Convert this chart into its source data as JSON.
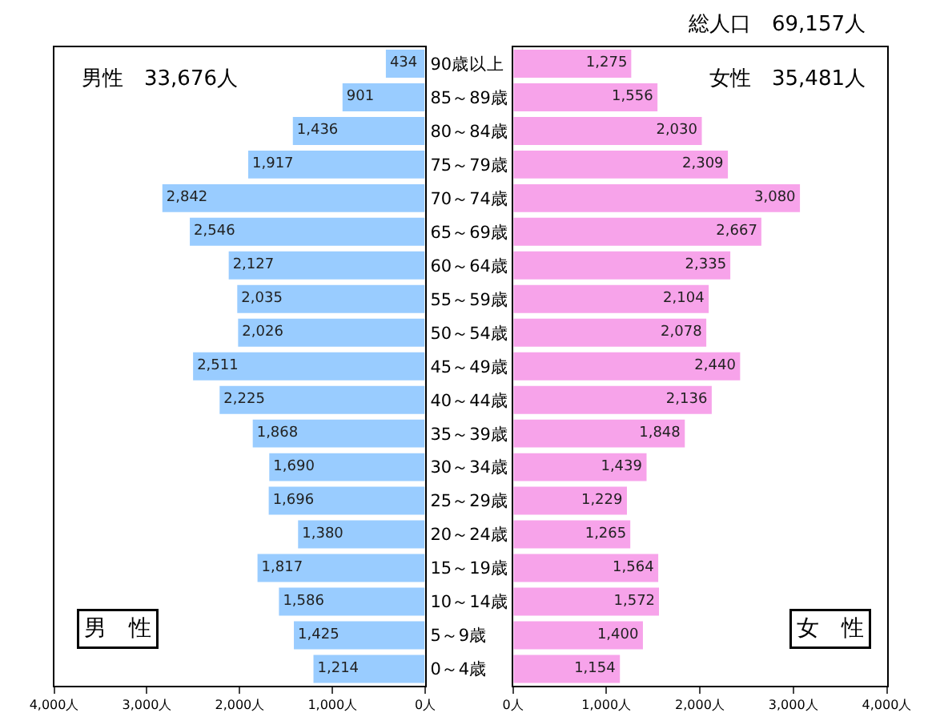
{
  "chart_data": [
    {
      "type": "bar",
      "orientation": "horizontal",
      "color": "#99ccff",
      "categories": [
        "90歳以上",
        "85～89歳",
        "80～84歳",
        "75～79歳",
        "70～74歳",
        "65～69歳",
        "60～64歳",
        "55～59歳",
        "50～54歳",
        "45～49歳",
        "40～44歳",
        "35～39歳",
        "30～34歳",
        "25～29歳",
        "20～24歳",
        "15～19歳",
        "10～14歳",
        "5～9歳",
        "0～4歳"
      ],
      "values": [
        434,
        901,
        1436,
        1917,
        2842,
        2546,
        2127,
        2035,
        2026,
        2511,
        2225,
        1868,
        1690,
        1696,
        1380,
        1817,
        1586,
        1425,
        1214
      ],
      "value_labels": [
        "434",
        "901",
        "1,436",
        "1,917",
        "2,842",
        "2,546",
        "2,127",
        "2,035",
        "2,026",
        "2,511",
        "2,225",
        "1,868",
        "1,690",
        "1,696",
        "1,380",
        "1,817",
        "1,586",
        "1,425",
        "1,214"
      ],
      "xlim": [
        4000,
        0
      ],
      "xticks": [
        {
          "value": 4000,
          "label": "4,000人"
        },
        {
          "value": 3000,
          "label": "3,000人"
        },
        {
          "value": 2000,
          "label": "2,000人"
        },
        {
          "value": 1000,
          "label": "1,000人"
        },
        {
          "value": 0,
          "label": "0人"
        }
      ],
      "annotations": [
        "男性　33,676人",
        "男　性"
      ]
    },
    {
      "type": "bar",
      "orientation": "horizontal",
      "color": "#f7a3ea",
      "tick_labels": "x",
      "categories": [
        null,
        null,
        null,
        null,
        null,
        null,
        null,
        null,
        null,
        null,
        null,
        null,
        null,
        null,
        null,
        null,
        null,
        null,
        null
      ],
      "values": [
        1275,
        1556,
        2030,
        2309,
        3080,
        2667,
        2335,
        2104,
        2078,
        2440,
        2136,
        1848,
        1439,
        1229,
        1265,
        1564,
        1572,
        1400,
        1154
      ],
      "value_labels": [
        "1,275",
        "1,556",
        "2,030",
        "2,309",
        "3,080",
        "2,667",
        "2,335",
        "2,104",
        "2,078",
        "2,440",
        "2,136",
        "1,848",
        "1,439",
        "1,229",
        "1,265",
        "1,564",
        "1,572",
        "1,400",
        "1,154"
      ],
      "xlim": [
        0,
        4000
      ],
      "xticks": [
        {
          "value": 0,
          "label": "0人"
        },
        {
          "value": 1000,
          "label": "1,000人"
        },
        {
          "value": 2000,
          "label": "2,000人"
        },
        {
          "value": 3000,
          "label": "3,000人"
        },
        {
          "value": 4000,
          "label": "4,000人"
        }
      ],
      "annotations": [
        "総人口　69,157人",
        "女性　35,481人",
        "女　性"
      ]
    }
  ]
}
